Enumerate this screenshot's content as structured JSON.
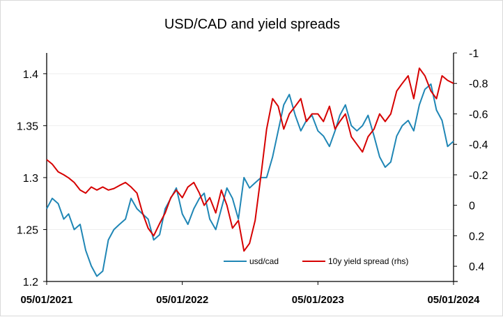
{
  "chart_data": {
    "type": "line",
    "title": "USD/CAD and yield spreads",
    "x_tick_labels": [
      "05/01/2021",
      "05/01/2022",
      "05/01/2023",
      "05/01/2024"
    ],
    "x_ticks": [
      "2021-01-05",
      "2022-01-05",
      "2023-01-05",
      "2024-01-05"
    ],
    "xlim": [
      "2021-01-05",
      "2024-01-05"
    ],
    "y_left": {
      "lim": [
        1.2,
        1.42
      ],
      "ticks": [
        1.2,
        1.25,
        1.3,
        1.35,
        1.4
      ],
      "tick_labels": [
        "1.2",
        "1.25",
        "1.3",
        "1.35",
        "1.4"
      ]
    },
    "y_right": {
      "lim": [
        0.5,
        -1.0
      ],
      "inverted": true,
      "ticks": [
        0.4,
        0.2,
        0,
        -0.2,
        -0.4,
        -0.6,
        -0.8,
        -1.0
      ],
      "tick_labels": [
        "0.4",
        "0.2",
        "0",
        "-0.2",
        "-0.4",
        "-0.6",
        "-0.8",
        "-1"
      ]
    },
    "legend_position": "bottom-right",
    "series": [
      {
        "name": "usd/cad",
        "axis": "left",
        "color": "#1f86b5",
        "x": [
          "2021-01-05",
          "2021-01-20",
          "2021-02-05",
          "2021-02-20",
          "2021-03-05",
          "2021-03-20",
          "2021-04-05",
          "2021-04-20",
          "2021-05-05",
          "2021-05-20",
          "2021-06-05",
          "2021-06-20",
          "2021-07-05",
          "2021-07-20",
          "2021-08-05",
          "2021-08-20",
          "2021-09-05",
          "2021-09-20",
          "2021-10-05",
          "2021-10-20",
          "2021-11-05",
          "2021-11-20",
          "2021-12-05",
          "2021-12-20",
          "2022-01-05",
          "2022-01-20",
          "2022-02-05",
          "2022-02-20",
          "2022-03-05",
          "2022-03-20",
          "2022-04-05",
          "2022-04-20",
          "2022-05-05",
          "2022-05-20",
          "2022-06-05",
          "2022-06-20",
          "2022-07-05",
          "2022-07-20",
          "2022-08-05",
          "2022-08-20",
          "2022-09-05",
          "2022-09-20",
          "2022-10-05",
          "2022-10-20",
          "2022-11-05",
          "2022-11-20",
          "2022-12-05",
          "2022-12-20",
          "2023-01-05",
          "2023-01-20",
          "2023-02-05",
          "2023-02-20",
          "2023-03-05",
          "2023-03-20",
          "2023-04-05",
          "2023-04-20",
          "2023-05-05",
          "2023-05-20",
          "2023-06-05",
          "2023-06-20",
          "2023-07-05",
          "2023-07-20",
          "2023-08-05",
          "2023-08-20",
          "2023-09-05",
          "2023-09-20",
          "2023-10-05",
          "2023-10-20",
          "2023-11-05",
          "2023-11-20",
          "2023-12-05",
          "2023-12-20",
          "2024-01-05"
        ],
        "values": [
          1.27,
          1.28,
          1.275,
          1.26,
          1.265,
          1.25,
          1.255,
          1.23,
          1.215,
          1.205,
          1.21,
          1.24,
          1.25,
          1.255,
          1.26,
          1.28,
          1.27,
          1.265,
          1.26,
          1.24,
          1.245,
          1.27,
          1.28,
          1.29,
          1.265,
          1.255,
          1.27,
          1.28,
          1.285,
          1.26,
          1.25,
          1.27,
          1.29,
          1.28,
          1.26,
          1.3,
          1.29,
          1.295,
          1.3,
          1.3,
          1.32,
          1.345,
          1.37,
          1.38,
          1.36,
          1.345,
          1.355,
          1.36,
          1.345,
          1.34,
          1.33,
          1.345,
          1.36,
          1.37,
          1.35,
          1.345,
          1.35,
          1.36,
          1.34,
          1.32,
          1.31,
          1.315,
          1.34,
          1.35,
          1.355,
          1.345,
          1.37,
          1.385,
          1.39,
          1.365,
          1.355,
          1.33,
          1.335
        ]
      },
      {
        "name": "10y yield spread (rhs)",
        "axis": "right",
        "color": "#d60000",
        "x": [
          "2021-01-05",
          "2021-01-20",
          "2021-02-05",
          "2021-02-20",
          "2021-03-05",
          "2021-03-20",
          "2021-04-05",
          "2021-04-20",
          "2021-05-05",
          "2021-05-20",
          "2021-06-05",
          "2021-06-20",
          "2021-07-05",
          "2021-07-20",
          "2021-08-05",
          "2021-08-20",
          "2021-09-05",
          "2021-09-20",
          "2021-10-05",
          "2021-10-20",
          "2021-11-05",
          "2021-11-20",
          "2021-12-05",
          "2021-12-20",
          "2022-01-05",
          "2022-01-20",
          "2022-02-05",
          "2022-02-20",
          "2022-03-05",
          "2022-03-20",
          "2022-04-05",
          "2022-04-20",
          "2022-05-05",
          "2022-05-20",
          "2022-06-05",
          "2022-06-20",
          "2022-07-05",
          "2022-07-20",
          "2022-08-05",
          "2022-08-20",
          "2022-09-05",
          "2022-09-20",
          "2022-10-05",
          "2022-10-20",
          "2022-11-05",
          "2022-11-20",
          "2022-12-05",
          "2022-12-20",
          "2023-01-05",
          "2023-01-20",
          "2023-02-05",
          "2023-02-20",
          "2023-03-05",
          "2023-03-20",
          "2023-04-05",
          "2023-04-20",
          "2023-05-05",
          "2023-05-20",
          "2023-06-05",
          "2023-06-20",
          "2023-07-05",
          "2023-07-20",
          "2023-08-05",
          "2023-08-20",
          "2023-09-05",
          "2023-09-20",
          "2023-10-05",
          "2023-10-20",
          "2023-11-05",
          "2023-11-20",
          "2023-12-05",
          "2023-12-20",
          "2024-01-05"
        ],
        "values": [
          -0.3,
          -0.27,
          -0.22,
          -0.2,
          -0.18,
          -0.15,
          -0.1,
          -0.08,
          -0.12,
          -0.1,
          -0.12,
          -0.1,
          -0.11,
          -0.13,
          -0.15,
          -0.12,
          -0.08,
          0.05,
          0.15,
          0.2,
          0.12,
          0.05,
          -0.05,
          -0.1,
          -0.05,
          -0.12,
          -0.15,
          -0.08,
          0.0,
          -0.05,
          0.05,
          -0.1,
          0.0,
          0.15,
          0.1,
          0.3,
          0.25,
          0.1,
          -0.2,
          -0.5,
          -0.7,
          -0.65,
          -0.5,
          -0.6,
          -0.65,
          -0.7,
          -0.55,
          -0.6,
          -0.6,
          -0.55,
          -0.65,
          -0.5,
          -0.55,
          -0.6,
          -0.45,
          -0.4,
          -0.35,
          -0.45,
          -0.5,
          -0.6,
          -0.55,
          -0.6,
          -0.75,
          -0.8,
          -0.85,
          -0.7,
          -0.9,
          -0.85,
          -0.75,
          -0.7,
          -0.85,
          -0.82,
          -0.8
        ]
      }
    ]
  }
}
